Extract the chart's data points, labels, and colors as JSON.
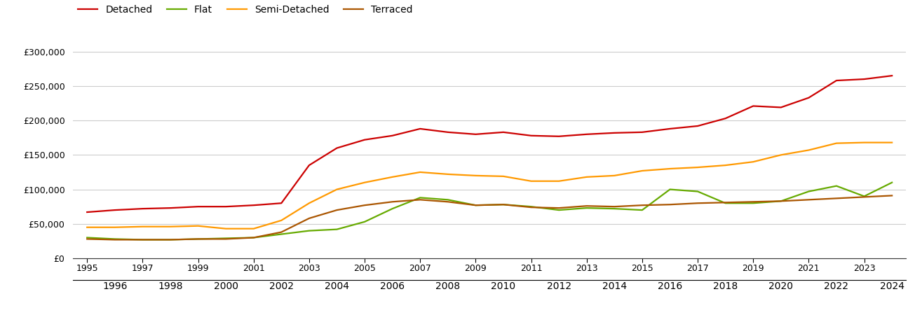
{
  "series": {
    "Detached": {
      "color": "#cc0000",
      "years": [
        1995,
        1996,
        1997,
        1998,
        1999,
        2000,
        2001,
        2002,
        2003,
        2004,
        2005,
        2006,
        2007,
        2008,
        2009,
        2010,
        2011,
        2012,
        2013,
        2014,
        2015,
        2016,
        2017,
        2018,
        2019,
        2020,
        2021,
        2022,
        2023,
        2024
      ],
      "values": [
        67000,
        70000,
        72000,
        73000,
        75000,
        75000,
        77000,
        80000,
        135000,
        160000,
        172000,
        178000,
        188000,
        183000,
        180000,
        183000,
        178000,
        177000,
        180000,
        182000,
        183000,
        188000,
        192000,
        203000,
        221000,
        219000,
        233000,
        258000,
        260000,
        265000
      ]
    },
    "Flat": {
      "color": "#66aa00",
      "years": [
        1995,
        1996,
        1997,
        1998,
        1999,
        2000,
        2001,
        2002,
        2003,
        2004,
        2005,
        2006,
        2007,
        2008,
        2009,
        2010,
        2011,
        2012,
        2013,
        2014,
        2015,
        2016,
        2017,
        2018,
        2019,
        2020,
        2021,
        2022,
        2023,
        2024
      ],
      "values": [
        30000,
        28000,
        27000,
        27000,
        28000,
        29000,
        30000,
        35000,
        40000,
        42000,
        53000,
        72000,
        88000,
        85000,
        77000,
        78000,
        75000,
        70000,
        73000,
        72000,
        70000,
        100000,
        97000,
        80000,
        80000,
        83000,
        97000,
        105000,
        90000,
        110000
      ]
    },
    "Semi-Detached": {
      "color": "#ff9900",
      "years": [
        1995,
        1996,
        1997,
        1998,
        1999,
        2000,
        2001,
        2002,
        2003,
        2004,
        2005,
        2006,
        2007,
        2008,
        2009,
        2010,
        2011,
        2012,
        2013,
        2014,
        2015,
        2016,
        2017,
        2018,
        2019,
        2020,
        2021,
        2022,
        2023,
        2024
      ],
      "values": [
        45000,
        45000,
        46000,
        46000,
        47000,
        43000,
        43000,
        55000,
        80000,
        100000,
        110000,
        118000,
        125000,
        122000,
        120000,
        119000,
        112000,
        112000,
        118000,
        120000,
        127000,
        130000,
        132000,
        135000,
        140000,
        150000,
        157000,
        167000,
        168000,
        168000
      ]
    },
    "Terraced": {
      "color": "#aa5500",
      "years": [
        1995,
        1996,
        1997,
        1998,
        1999,
        2000,
        2001,
        2002,
        2003,
        2004,
        2005,
        2006,
        2007,
        2008,
        2009,
        2010,
        2011,
        2012,
        2013,
        2014,
        2015,
        2016,
        2017,
        2018,
        2019,
        2020,
        2021,
        2022,
        2023,
        2024
      ],
      "values": [
        28000,
        27000,
        27000,
        27000,
        28000,
        28000,
        30000,
        38000,
        58000,
        70000,
        77000,
        82000,
        85000,
        82000,
        77000,
        78000,
        74000,
        73000,
        76000,
        75000,
        77000,
        78000,
        80000,
        81000,
        82000,
        83000,
        85000,
        87000,
        89000,
        91000
      ]
    }
  },
  "ylim": [
    0,
    320000
  ],
  "yticks": [
    0,
    50000,
    100000,
    150000,
    200000,
    250000,
    300000
  ],
  "xlim_min": 1994.5,
  "xlim_max": 2024.5,
  "background_color": "#ffffff",
  "grid_color": "#cccccc",
  "legend_order": [
    "Detached",
    "Flat",
    "Semi-Detached",
    "Terraced"
  ]
}
